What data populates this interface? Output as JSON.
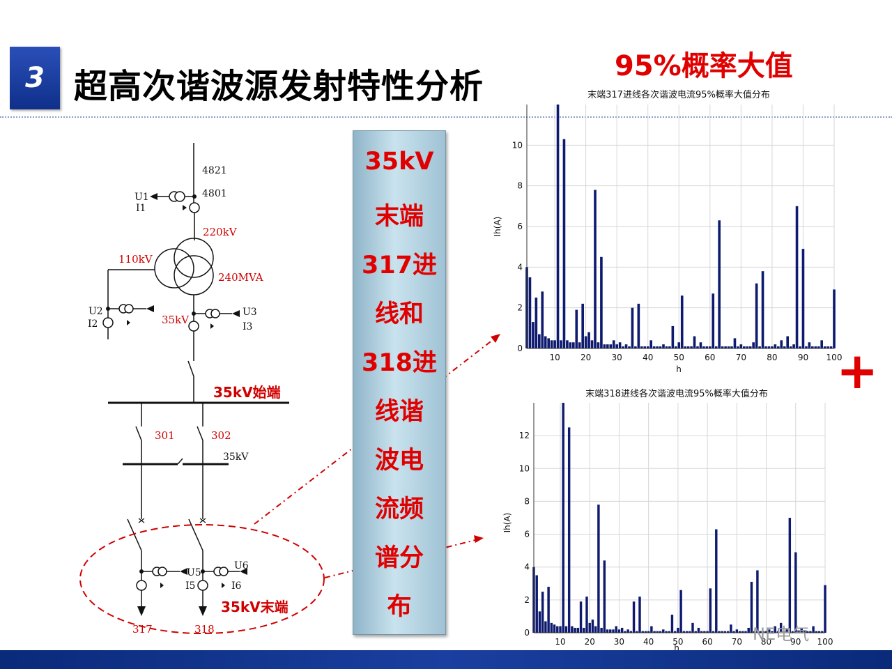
{
  "header": {
    "section_number": "3",
    "title": "超高次谐波源发射特性分析",
    "probability_label": "95%概率大值"
  },
  "banner": {
    "lines": [
      "35kV",
      "末端",
      "317进",
      "线和",
      "318进",
      "线谐",
      "波电",
      "流频",
      "谱分",
      "布"
    ]
  },
  "diagram": {
    "labels": {
      "bus_4821": "4821",
      "bus_4801": "4801",
      "u1": "U1",
      "i1": "I1",
      "v220": "220kV",
      "v110": "110kV",
      "mva240": "240MVA",
      "u2": "U2",
      "i2": "I2",
      "v35_mid": "35kV",
      "u3": "U3",
      "i3": "I3",
      "start_35": "35kV始端",
      "sw301": "301",
      "sw302": "302",
      "v35_bus": "35kV",
      "u5": "U5",
      "i5": "I5",
      "u6": "U6",
      "i6": "I6",
      "end_35": "35kV末端",
      "feeder317": "317",
      "feeder318": "318"
    }
  },
  "decorations": {
    "plus": "+",
    "watermark": "NE电气"
  },
  "colors": {
    "accent_red": "#e00000",
    "badge_blue": "#1a3fa0",
    "bar_navy": "#0d1a6e"
  },
  "chart_data": [
    {
      "type": "bar",
      "title": "末端317进线各次谐波电流95%概率大值分布",
      "xlabel": "h",
      "ylabel": "Ih(A)",
      "xlim": [
        1,
        100
      ],
      "ylim": [
        0,
        12
      ],
      "xticks": [
        10,
        20,
        30,
        40,
        50,
        60,
        70,
        80,
        90,
        100
      ],
      "yticks": [
        0,
        2,
        4,
        6,
        8,
        10
      ],
      "grid": true,
      "x": [
        1,
        2,
        3,
        4,
        5,
        6,
        7,
        8,
        9,
        10,
        11,
        12,
        13,
        14,
        15,
        16,
        17,
        18,
        19,
        20,
        21,
        22,
        23,
        24,
        25,
        26,
        27,
        28,
        29,
        30,
        31,
        32,
        33,
        34,
        35,
        36,
        37,
        38,
        39,
        40,
        41,
        42,
        43,
        44,
        45,
        46,
        47,
        48,
        49,
        50,
        51,
        52,
        53,
        54,
        55,
        56,
        57,
        58,
        59,
        60,
        61,
        62,
        63,
        64,
        65,
        66,
        67,
        68,
        69,
        70,
        71,
        72,
        73,
        74,
        75,
        76,
        77,
        78,
        79,
        80,
        81,
        82,
        83,
        84,
        85,
        86,
        87,
        88,
        89,
        90,
        91,
        92,
        93,
        94,
        95,
        96,
        97,
        98,
        99,
        100
      ],
      "values": [
        4.0,
        3.5,
        1.3,
        2.5,
        0.7,
        2.8,
        0.6,
        0.5,
        0.4,
        0.4,
        12.0,
        0.4,
        10.3,
        0.4,
        0.3,
        0.3,
        1.9,
        0.3,
        2.2,
        0.6,
        0.8,
        0.4,
        7.8,
        0.3,
        4.5,
        0.2,
        0.2,
        0.2,
        0.4,
        0.2,
        0.3,
        0.1,
        0.2,
        0.1,
        2.0,
        0.1,
        2.2,
        0.1,
        0.1,
        0.1,
        0.4,
        0.1,
        0.1,
        0.1,
        0.2,
        0.1,
        0.1,
        1.1,
        0.1,
        0.3,
        2.6,
        0.1,
        0.1,
        0.1,
        0.6,
        0.1,
        0.3,
        0.1,
        0.1,
        0.1,
        2.7,
        0.1,
        6.3,
        0.1,
        0.1,
        0.1,
        0.1,
        0.5,
        0.1,
        0.2,
        0.1,
        0.1,
        0.1,
        0.3,
        3.2,
        0.1,
        3.8,
        0.1,
        0.1,
        0.1,
        0.2,
        0.1,
        0.4,
        0.1,
        0.6,
        0.1,
        0.2,
        7.0,
        0.1,
        4.9,
        0.1,
        0.3,
        0.1,
        0.1,
        0.1,
        0.4,
        0.1,
        0.1,
        0.1,
        2.9
      ]
    },
    {
      "type": "bar",
      "title": "末端318进线各次谐波电流95%概率大值分布",
      "xlabel": "h",
      "ylabel": "Ih(A)",
      "xlim": [
        1,
        100
      ],
      "ylim": [
        0,
        14
      ],
      "xticks": [
        10,
        20,
        30,
        40,
        50,
        60,
        70,
        80,
        90,
        100
      ],
      "yticks": [
        0,
        2,
        4,
        6,
        8,
        10,
        12
      ],
      "grid": true,
      "x": [
        1,
        2,
        3,
        4,
        5,
        6,
        7,
        8,
        9,
        10,
        11,
        12,
        13,
        14,
        15,
        16,
        17,
        18,
        19,
        20,
        21,
        22,
        23,
        24,
        25,
        26,
        27,
        28,
        29,
        30,
        31,
        32,
        33,
        34,
        35,
        36,
        37,
        38,
        39,
        40,
        41,
        42,
        43,
        44,
        45,
        46,
        47,
        48,
        49,
        50,
        51,
        52,
        53,
        54,
        55,
        56,
        57,
        58,
        59,
        60,
        61,
        62,
        63,
        64,
        65,
        66,
        67,
        68,
        69,
        70,
        71,
        72,
        73,
        74,
        75,
        76,
        77,
        78,
        79,
        80,
        81,
        82,
        83,
        84,
        85,
        86,
        87,
        88,
        89,
        90,
        91,
        92,
        93,
        94,
        95,
        96,
        97,
        98,
        99,
        100
      ],
      "values": [
        4.0,
        3.5,
        1.3,
        2.5,
        0.7,
        2.8,
        0.6,
        0.5,
        0.4,
        0.4,
        14.0,
        0.4,
        12.5,
        0.4,
        0.3,
        0.3,
        1.9,
        0.3,
        2.2,
        0.6,
        0.8,
        0.4,
        7.8,
        0.3,
        4.4,
        0.2,
        0.2,
        0.2,
        0.4,
        0.2,
        0.3,
        0.1,
        0.2,
        0.1,
        1.9,
        0.1,
        2.2,
        0.1,
        0.1,
        0.1,
        0.4,
        0.1,
        0.1,
        0.1,
        0.2,
        0.1,
        0.1,
        1.1,
        0.1,
        0.3,
        2.6,
        0.1,
        0.1,
        0.1,
        0.6,
        0.1,
        0.3,
        0.1,
        0.1,
        0.1,
        2.7,
        0.1,
        6.3,
        0.1,
        0.1,
        0.1,
        0.1,
        0.5,
        0.1,
        0.2,
        0.1,
        0.1,
        0.1,
        0.3,
        3.1,
        0.1,
        3.8,
        0.1,
        0.1,
        0.1,
        0.2,
        0.1,
        0.4,
        0.1,
        0.6,
        0.1,
        0.2,
        7.0,
        0.1,
        4.9,
        0.1,
        0.3,
        0.1,
        0.1,
        0.1,
        0.4,
        0.1,
        0.1,
        0.1,
        2.9
      ]
    }
  ]
}
